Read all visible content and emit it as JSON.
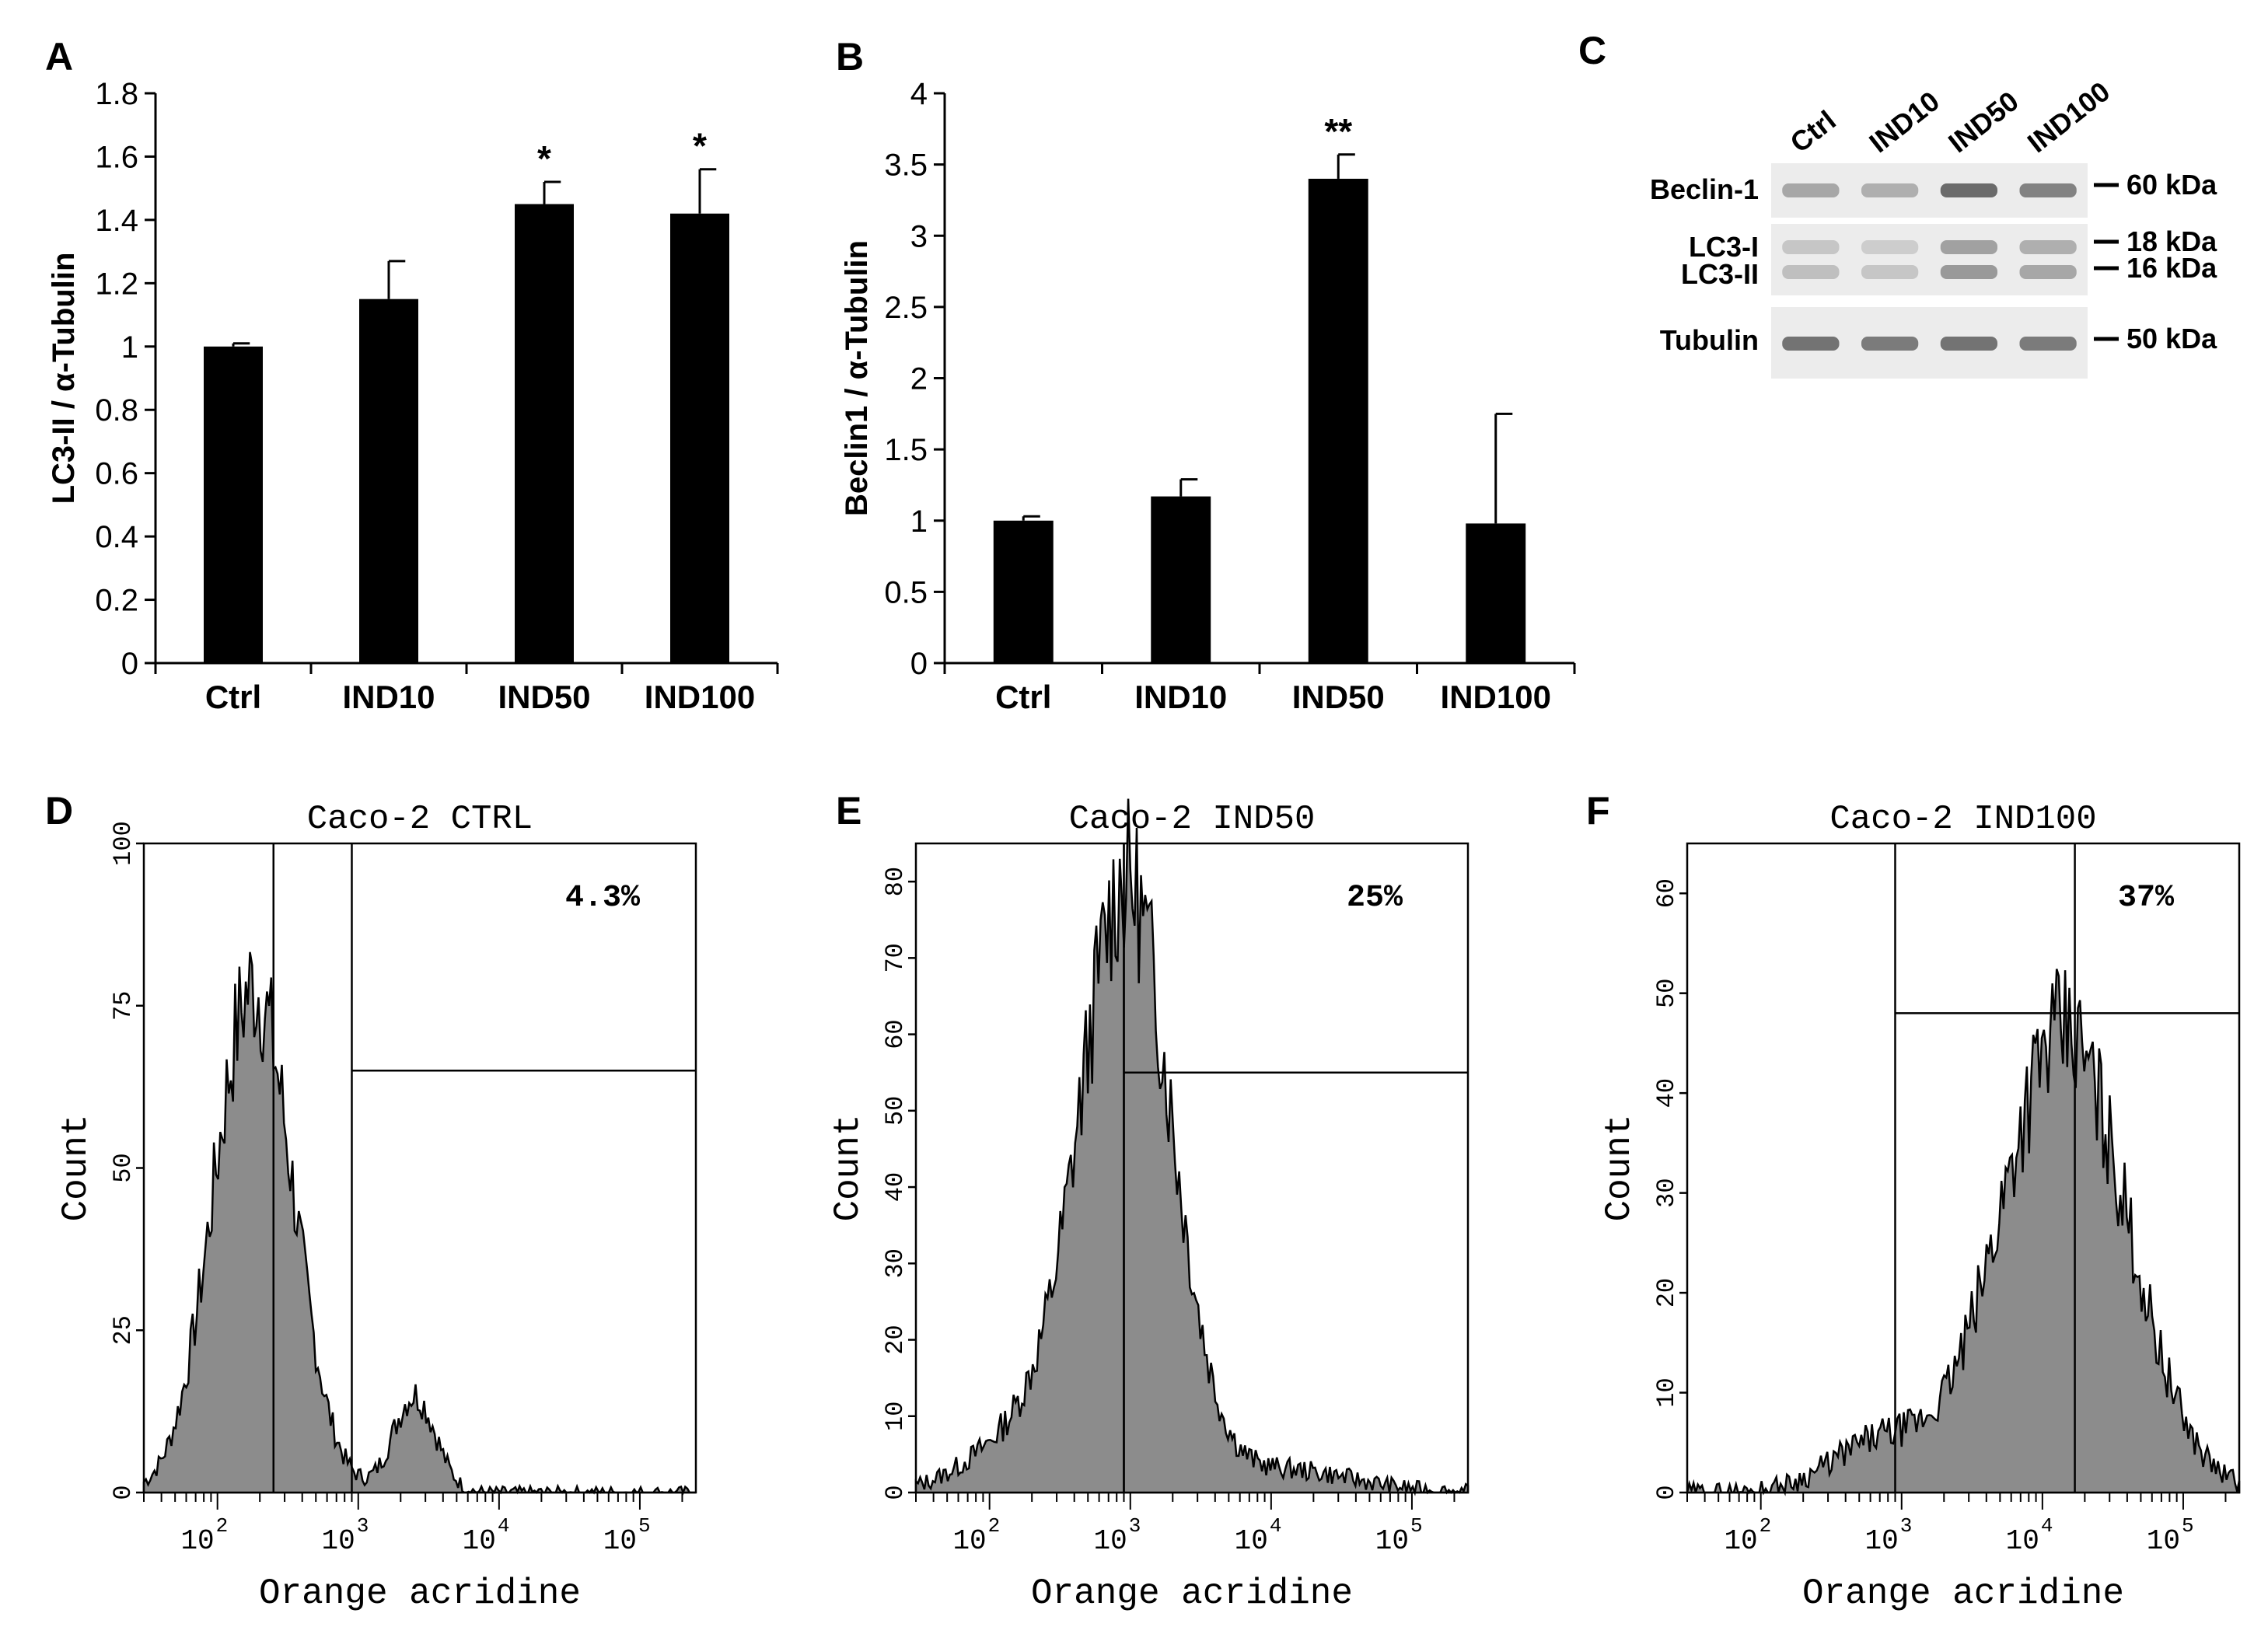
{
  "colors": {
    "bar": "#000000",
    "histogram_fill": "#8c8c8c",
    "blot_band": "#555555",
    "blot_bg": "#ececec",
    "axis": "#000000"
  },
  "chart_data": [
    {
      "panel": "A",
      "type": "bar",
      "categories": [
        "Ctrl",
        "IND10",
        "IND50",
        "IND100"
      ],
      "values": [
        1.0,
        1.15,
        1.45,
        1.42
      ],
      "errors": [
        0.01,
        0.12,
        0.07,
        0.14
      ],
      "significance": [
        "",
        "",
        "*",
        "*"
      ],
      "ylabel": "LC3-II / α-Tubulin",
      "xlabel": "",
      "ylim": [
        0,
        1.8
      ],
      "yticks": [
        "0",
        "0.2",
        "0.4",
        "0.6",
        "0.8",
        "1",
        "1.2",
        "1.4",
        "1.6",
        "1.8"
      ]
    },
    {
      "panel": "B",
      "type": "bar",
      "categories": [
        "Ctrl",
        "IND10",
        "IND50",
        "IND100"
      ],
      "values": [
        1.0,
        1.17,
        3.4,
        0.98
      ],
      "errors": [
        0.03,
        0.12,
        0.17,
        0.77
      ],
      "significance": [
        "",
        "",
        "**",
        ""
      ],
      "ylabel": "Beclin1 / α-Tubulin",
      "xlabel": "",
      "ylim": [
        0,
        4
      ],
      "yticks": [
        "0",
        "0.5",
        "1",
        "1.5",
        "2",
        "2.5",
        "3",
        "3.5",
        "4"
      ]
    },
    {
      "panel": "C",
      "type": "western_blot",
      "lanes": [
        "Ctrl",
        "IND10",
        "IND50",
        "IND100"
      ],
      "rows": [
        {
          "label": "Beclin-1",
          "bands": [
            {
              "marker": "60 kDa",
              "intensity": [
                0.45,
                0.4,
                0.85,
                0.7
              ]
            }
          ]
        },
        {
          "label_top": "LC3-I",
          "label_bottom": "LC3-II",
          "bands": [
            {
              "marker": "18 kDa",
              "intensity": [
                0.25,
                0.2,
                0.5,
                0.4
              ]
            },
            {
              "marker": "16 kDa",
              "intensity": [
                0.3,
                0.25,
                0.55,
                0.45
              ]
            }
          ]
        },
        {
          "label": "Tubulin",
          "bands": [
            {
              "marker": "50 kDa",
              "intensity": [
                0.8,
                0.75,
                0.8,
                0.75
              ]
            }
          ]
        }
      ]
    },
    {
      "panel": "D",
      "type": "histogram",
      "title": "Caco-2 CTRL",
      "xlabel": "Orange acridine",
      "ylabel": "Count",
      "xscale": "log",
      "xlim": [
        30,
        250000
      ],
      "xticks": [
        {
          "base": "10",
          "exp": "2",
          "value": 100
        },
        {
          "base": "10",
          "exp": "3",
          "value": 1000
        },
        {
          "base": "10",
          "exp": "4",
          "value": 10000
        },
        {
          "base": "10",
          "exp": "5",
          "value": 100000
        }
      ],
      "ylim": [
        0,
        100
      ],
      "yticks": [
        "0",
        "25",
        "50",
        "75",
        "100"
      ],
      "gate_x": 900,
      "gate_y": 65,
      "gate_percent": "4.3%",
      "peak_line_x": 250,
      "distribution": [
        {
          "center": 180,
          "sigma_decades": 0.28,
          "height": 78
        },
        {
          "center": 2500,
          "sigma_decades": 0.15,
          "height": 15
        }
      ]
    },
    {
      "panel": "E",
      "type": "histogram",
      "title": "Caco-2 IND50",
      "xlabel": "Orange acridine",
      "ylabel": "Count",
      "xscale": "log",
      "xlim": [
        30,
        250000
      ],
      "xticks": [
        {
          "base": "10",
          "exp": "2",
          "value": 100
        },
        {
          "base": "10",
          "exp": "3",
          "value": 1000
        },
        {
          "base": "10",
          "exp": "4",
          "value": 10000
        },
        {
          "base": "10",
          "exp": "5",
          "value": 100000
        }
      ],
      "ylim": [
        0,
        85
      ],
      "yticks": [
        "0",
        "10",
        "20",
        "30",
        "40",
        "50",
        "60",
        "70",
        "80"
      ],
      "gate_x": 900,
      "gate_y": 55,
      "gate_percent": "25%",
      "peak_line_x": 900,
      "distribution": [
        {
          "center": 950,
          "sigma_decades": 0.32,
          "height": 78
        },
        {
          "center": 200,
          "sigma_decades": 0.4,
          "height": 8
        },
        {
          "center": 12000,
          "sigma_decades": 0.5,
          "height": 3
        }
      ]
    },
    {
      "panel": "F",
      "type": "histogram",
      "title": "Caco-2 IND100",
      "xlabel": "Orange acridine",
      "ylabel": "Count",
      "xscale": "log",
      "xlim": [
        30,
        250000
      ],
      "xticks": [
        {
          "base": "10",
          "exp": "2",
          "value": 100
        },
        {
          "base": "10",
          "exp": "3",
          "value": 1000
        },
        {
          "base": "10",
          "exp": "4",
          "value": 10000
        },
        {
          "base": "10",
          "exp": "5",
          "value": 100000
        }
      ],
      "ylim": [
        0,
        65
      ],
      "yticks": [
        "0",
        "10",
        "20",
        "30",
        "40",
        "50",
        "60"
      ],
      "gate_x": 900,
      "gate_y": 48,
      "gate_percent": "37%",
      "peak_line_x": 17000,
      "distribution": [
        {
          "center": 14000,
          "sigma_decades": 0.45,
          "height": 46
        },
        {
          "center": 700,
          "sigma_decades": 0.35,
          "height": 5
        }
      ]
    }
  ]
}
